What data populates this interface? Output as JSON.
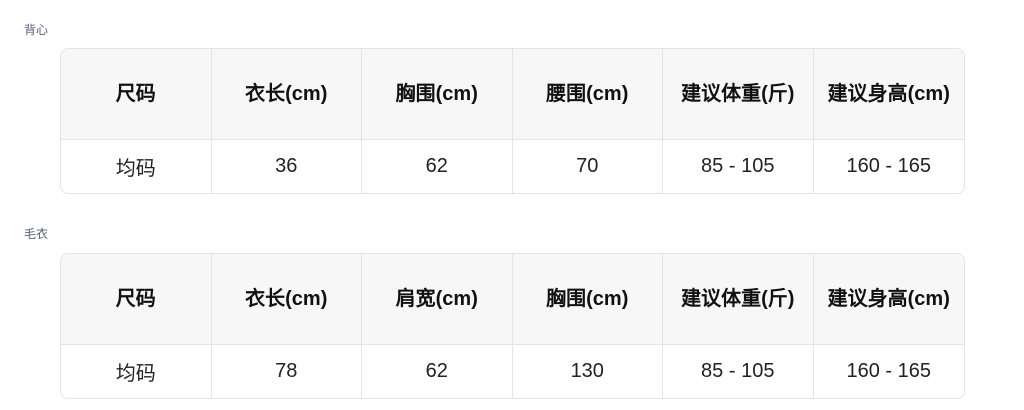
{
  "tables": [
    {
      "label": "背心",
      "headers": [
        "尺码",
        "衣长(cm)",
        "胸围(cm)",
        "腰围(cm)",
        "建议体重(斤)",
        "建议身高(cm)"
      ],
      "rows": [
        [
          "均码",
          "36",
          "62",
          "70",
          "85 - 105",
          "160 - 165"
        ]
      ]
    },
    {
      "label": "毛衣",
      "headers": [
        "尺码",
        "衣长(cm)",
        "肩宽(cm)",
        "胸围(cm)",
        "建议体重(斤)",
        "建议身高(cm)"
      ],
      "rows": [
        [
          "均码",
          "78",
          "62",
          "130",
          "85 - 105",
          "160 - 165"
        ]
      ]
    }
  ]
}
